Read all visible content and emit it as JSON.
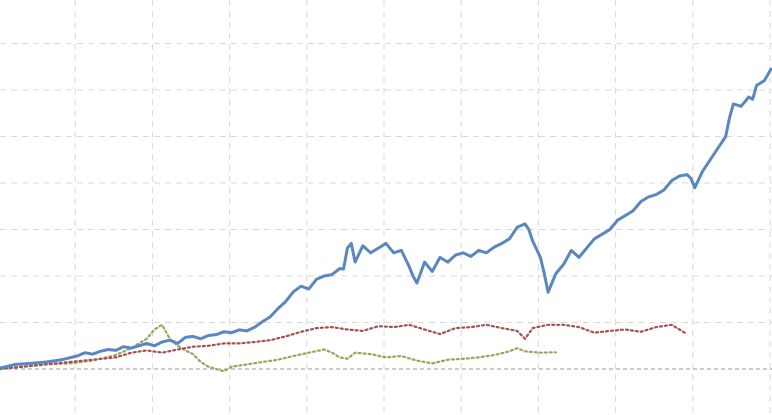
{
  "chart_data": {
    "type": "line",
    "title": "",
    "xlabel": "",
    "ylabel": "",
    "grid": true,
    "legend": "none",
    "xlim": [
      0,
      100
    ],
    "ylim": [
      -1,
      7.5
    ],
    "baseline_y": 0,
    "x_gridlines": [
      10,
      20,
      30,
      40,
      50,
      60,
      70,
      80,
      90,
      100
    ],
    "y_gridlines": [
      1,
      2,
      3,
      4,
      5,
      6,
      7
    ],
    "series": [
      {
        "key": "blue",
        "color": "#5b87c0",
        "style": "solid",
        "x": [
          0,
          2,
          4,
          6,
          8,
          10,
          11,
          12,
          13,
          14,
          15,
          16,
          17,
          18,
          19,
          20,
          21,
          22,
          23,
          24,
          25,
          26,
          27,
          28,
          29,
          30,
          31,
          32,
          33,
          34,
          35,
          36,
          37,
          38,
          39,
          40,
          41,
          42,
          43,
          44,
          44.5,
          45,
          45.5,
          46,
          47,
          48,
          49,
          50,
          51,
          52,
          53,
          53.5,
          54,
          55,
          56,
          57,
          58,
          59,
          60,
          61,
          62,
          63,
          64,
          65,
          66,
          67,
          68,
          68.5,
          69,
          70,
          70.5,
          71,
          72,
          73,
          74,
          75,
          76,
          77,
          78,
          79,
          80,
          81,
          82,
          83,
          84,
          85,
          86,
          87,
          88,
          89,
          89.5,
          90,
          91,
          92,
          93,
          94,
          94.5,
          95,
          96,
          97,
          97.5,
          98,
          99,
          100
        ],
        "y": [
          0.02,
          0.1,
          0.12,
          0.15,
          0.2,
          0.28,
          0.35,
          0.32,
          0.38,
          0.42,
          0.4,
          0.48,
          0.45,
          0.5,
          0.55,
          0.5,
          0.58,
          0.62,
          0.55,
          0.68,
          0.7,
          0.65,
          0.72,
          0.74,
          0.8,
          0.78,
          0.84,
          0.82,
          0.9,
          1.02,
          1.12,
          1.3,
          1.45,
          1.66,
          1.78,
          1.72,
          1.93,
          2.0,
          2.03,
          2.16,
          2.15,
          2.6,
          2.7,
          2.3,
          2.65,
          2.5,
          2.6,
          2.7,
          2.5,
          2.55,
          2.2,
          2.0,
          1.85,
          2.3,
          2.1,
          2.4,
          2.3,
          2.45,
          2.5,
          2.42,
          2.55,
          2.5,
          2.62,
          2.7,
          2.8,
          3.05,
          3.12,
          3.0,
          2.75,
          2.4,
          2.05,
          1.65,
          2.05,
          2.25,
          2.55,
          2.4,
          2.6,
          2.8,
          2.9,
          3.0,
          3.2,
          3.3,
          3.4,
          3.6,
          3.7,
          3.75,
          3.85,
          4.05,
          4.15,
          4.18,
          4.1,
          3.9,
          4.25,
          4.5,
          4.75,
          5.0,
          5.4,
          5.7,
          5.65,
          5.85,
          5.8,
          6.1,
          6.2,
          6.45
        ]
      },
      {
        "key": "red",
        "color": "#a5504f",
        "style": "dotted",
        "x": [
          0,
          3,
          6,
          9,
          12,
          15,
          17,
          19,
          21,
          23,
          25,
          27,
          29,
          31,
          33,
          35,
          37,
          39,
          41,
          43,
          45,
          47,
          49,
          51,
          53,
          55,
          57,
          59,
          61,
          63,
          65,
          67,
          68,
          69,
          71,
          73,
          75,
          77,
          79,
          81,
          83,
          85,
          87,
          89
        ],
        "y": [
          0,
          0.05,
          0.1,
          0.15,
          0.2,
          0.25,
          0.35,
          0.4,
          0.35,
          0.42,
          0.48,
          0.5,
          0.55,
          0.55,
          0.58,
          0.62,
          0.7,
          0.8,
          0.88,
          0.9,
          0.85,
          0.82,
          0.92,
          0.9,
          0.95,
          0.85,
          0.75,
          0.88,
          0.9,
          0.95,
          0.88,
          0.82,
          0.65,
          0.88,
          0.95,
          0.95,
          0.9,
          0.78,
          0.82,
          0.85,
          0.8,
          0.9,
          0.95,
          0.75
        ]
      },
      {
        "key": "green",
        "color": "#9aa55a",
        "style": "dotted",
        "x": [
          0,
          3,
          6,
          9,
          12,
          15,
          17,
          18,
          19,
          20,
          21,
          22,
          23,
          24,
          25,
          26,
          27,
          28,
          29,
          30,
          32,
          34,
          36,
          38,
          40,
          42,
          43,
          44,
          45,
          46,
          48,
          50,
          52,
          54,
          56,
          58,
          60,
          62,
          64,
          66,
          67,
          68,
          70,
          72
        ],
        "y": [
          0,
          0.05,
          0.1,
          0.12,
          0.18,
          0.3,
          0.45,
          0.55,
          0.65,
          0.85,
          0.95,
          0.65,
          0.5,
          0.4,
          0.32,
          0.15,
          0.05,
          0.0,
          -0.05,
          0.05,
          0.1,
          0.15,
          0.2,
          0.28,
          0.35,
          0.42,
          0.35,
          0.25,
          0.22,
          0.35,
          0.32,
          0.25,
          0.28,
          0.18,
          0.12,
          0.2,
          0.22,
          0.25,
          0.3,
          0.38,
          0.45,
          0.38,
          0.35,
          0.36
        ]
      }
    ]
  }
}
